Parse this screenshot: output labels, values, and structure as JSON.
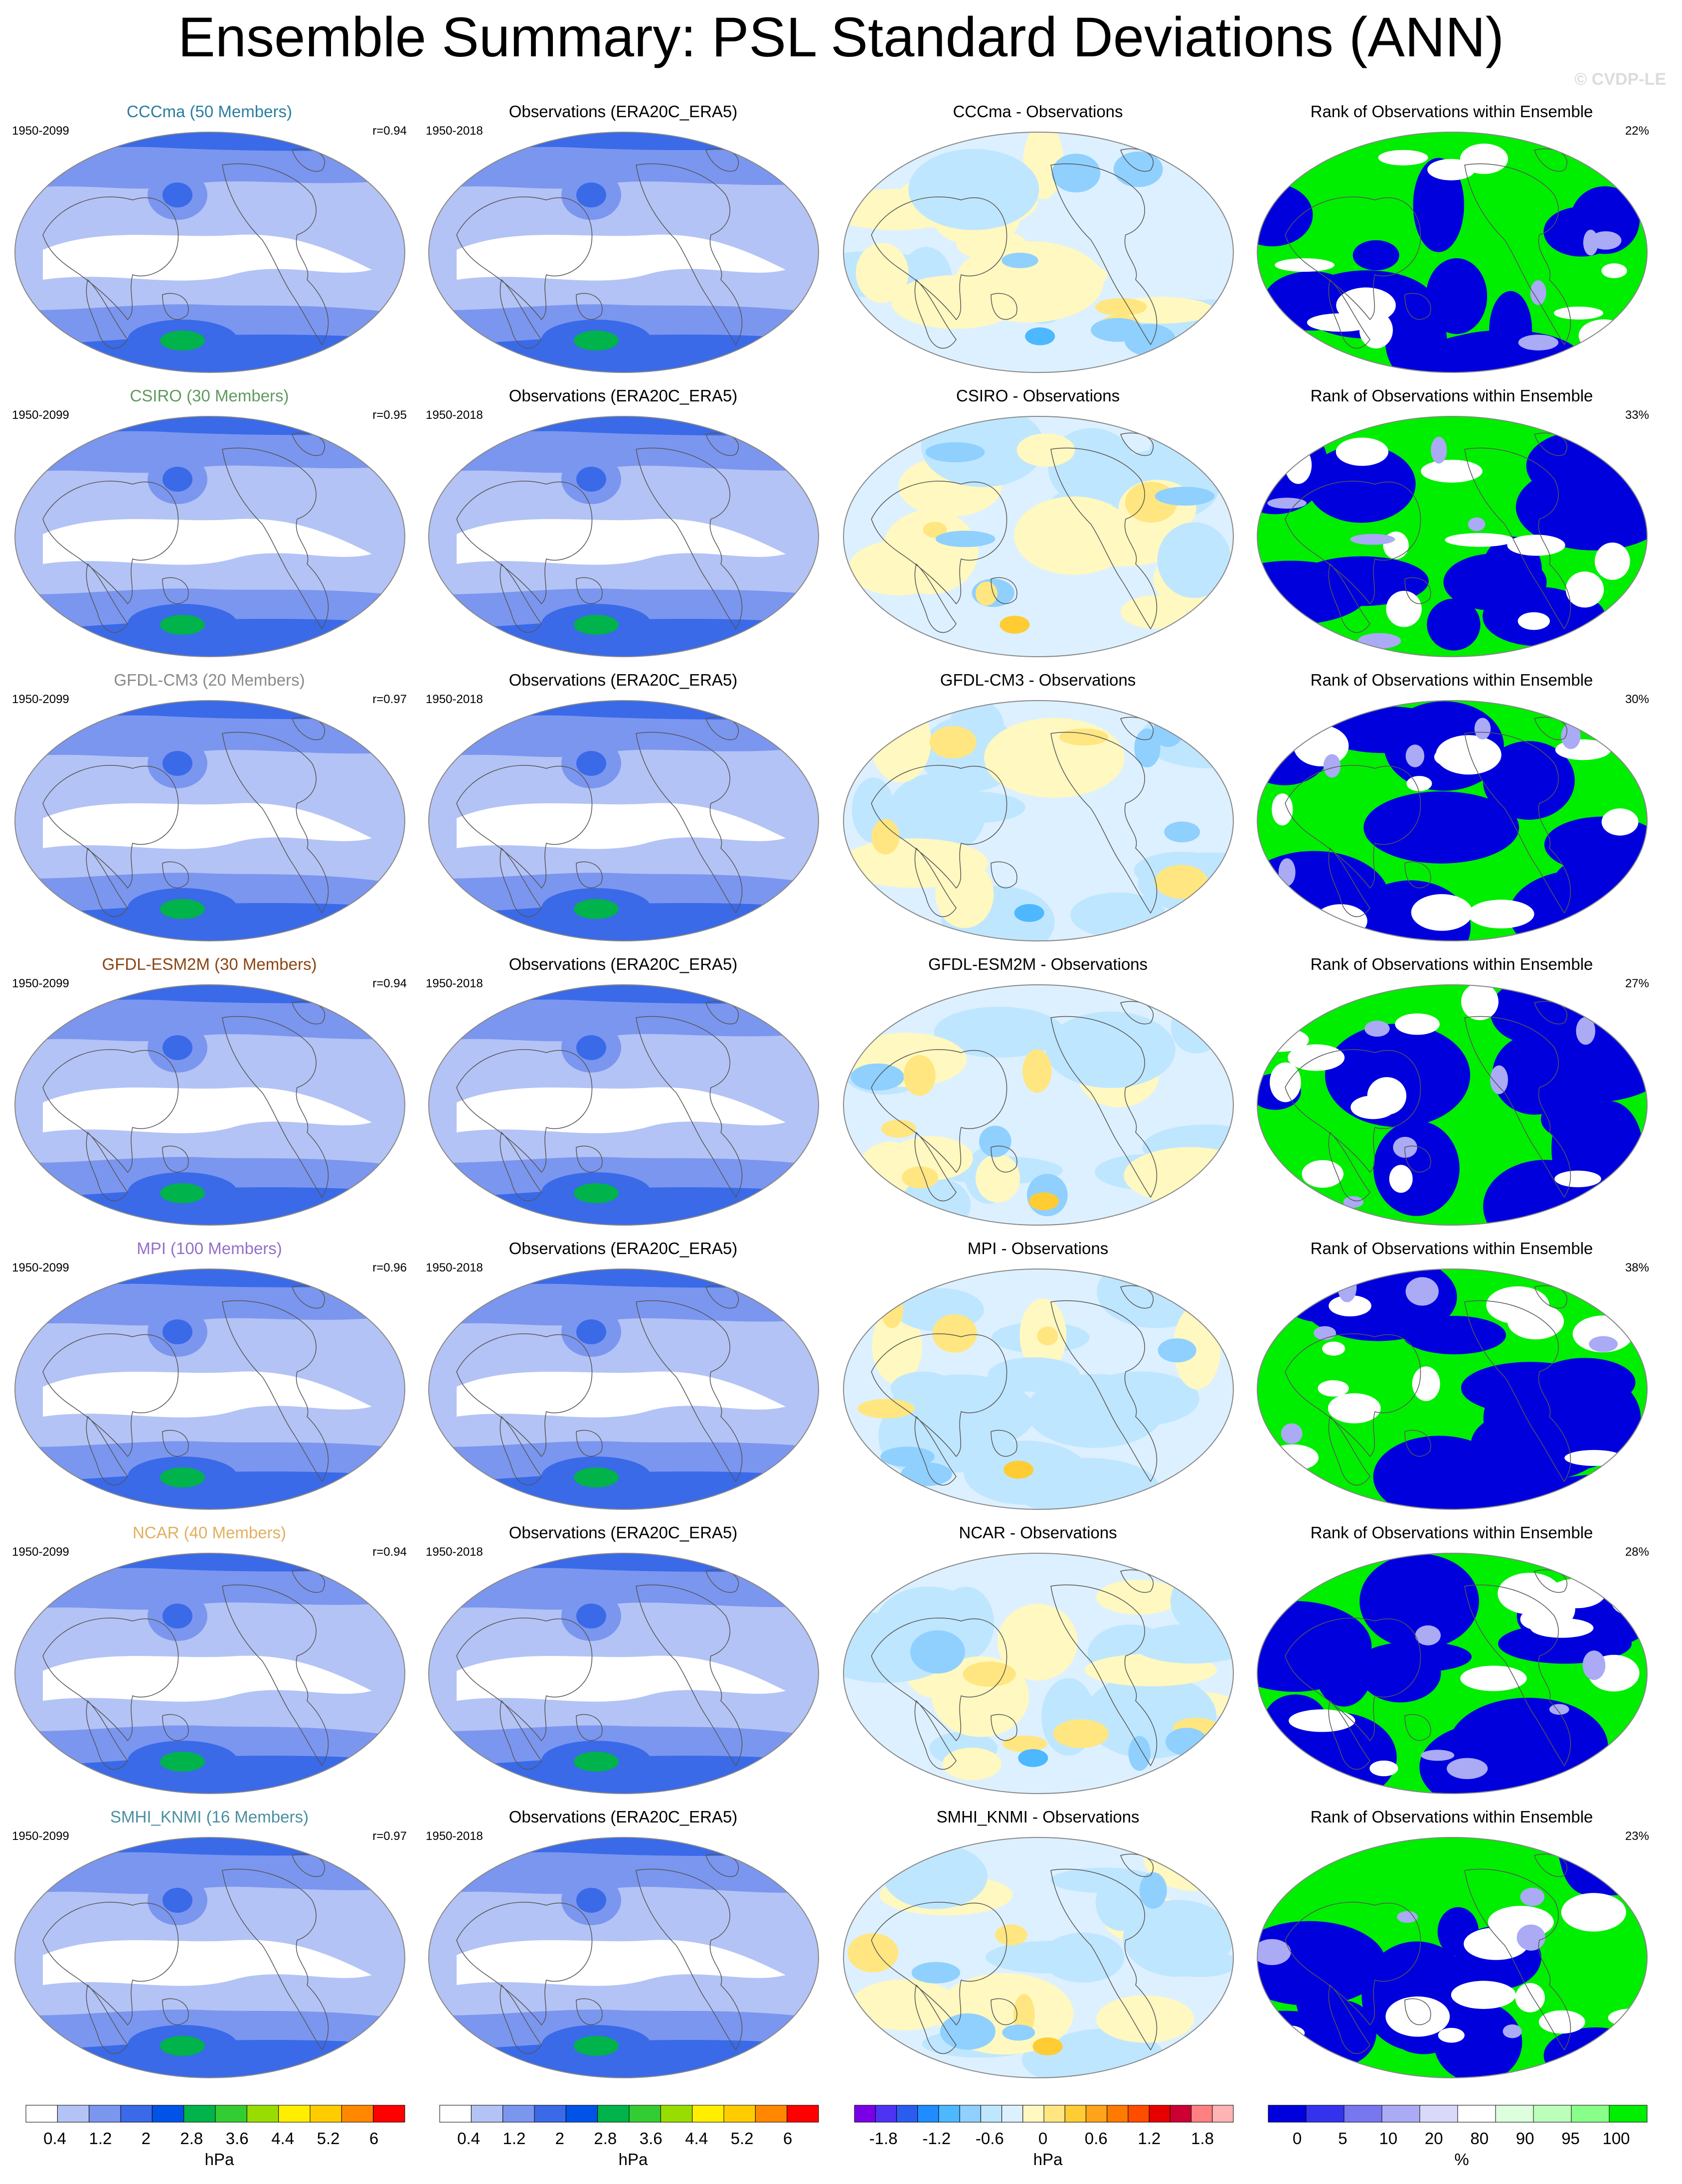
{
  "title": "Ensemble Summary: PSL Standard Deviations (ANN)",
  "watermark": "© CVDP-LE",
  "colors": {
    "land_outline": "#555555",
    "sd": [
      "#ffffff",
      "#b4c3f5",
      "#7b96ef",
      "#3a6ae8",
      "#0053e6",
      "#00b34a",
      "#33cc33",
      "#99dd00",
      "#ffee00",
      "#ffcc00",
      "#ff8800",
      "#ff0000"
    ],
    "diff": [
      "#7a00e6",
      "#4d33f2",
      "#2b5cf0",
      "#1f8cff",
      "#4db8ff",
      "#8fd0ff",
      "#bfe6ff",
      "#ddf0ff",
      "#fff8c0",
      "#ffe680",
      "#ffcc33",
      "#ffa31a",
      "#ff7a00",
      "#ff4d00",
      "#e60000",
      "#cc0033",
      "#ff8080",
      "#ffb3b3"
    ],
    "rank": [
      "#0000dd",
      "#3333ee",
      "#7777f0",
      "#aaaaf5",
      "#d9d9fa",
      "#ffffff",
      "#ddffdd",
      "#bbffbb",
      "#88ff88",
      "#00ee00"
    ]
  },
  "rows": [
    {
      "model": "CCCma (50 Members)",
      "model_color": "#2a7ea0",
      "diff_title": "CCCma - Observations",
      "model_period": "1950-2099",
      "r": "r=0.94",
      "rank_pct": "22%"
    },
    {
      "model": "CSIRO (30 Members)",
      "model_color": "#5f9a5f",
      "diff_title": "CSIRO - Observations",
      "model_period": "1950-2099",
      "r": "r=0.95",
      "rank_pct": "33%"
    },
    {
      "model": "GFDL-CM3 (20 Members)",
      "model_color": "#8a8a8a",
      "diff_title": "GFDL-CM3 - Observations",
      "model_period": "1950-2099",
      "r": "r=0.97",
      "rank_pct": "30%"
    },
    {
      "model": "GFDL-ESM2M (30 Members)",
      "model_color": "#8b4513",
      "diff_title": "GFDL-ESM2M - Observations",
      "model_period": "1950-2099",
      "r": "r=0.94",
      "rank_pct": "27%"
    },
    {
      "model": "MPI (100 Members)",
      "model_color": "#9370c8",
      "diff_title": "MPI - Observations",
      "model_period": "1950-2099",
      "r": "r=0.96",
      "rank_pct": "38%"
    },
    {
      "model": "NCAR (40 Members)",
      "model_color": "#e0b060",
      "diff_title": "NCAR - Observations",
      "model_period": "1950-2099",
      "r": "r=0.94",
      "rank_pct": "28%"
    },
    {
      "model": "SMHI_KNMI (16 Members)",
      "model_color": "#4a8fa0",
      "diff_title": "SMHI_KNMI - Observations",
      "model_period": "1950-2099",
      "r": "r=0.97",
      "rank_pct": "23%"
    }
  ],
  "obs_title": "Observations (ERA20C_ERA5)",
  "obs_period": "1950-2018",
  "rank_title": "Rank of Observations within Ensemble",
  "colorbars": [
    {
      "unit": "hPa",
      "ticks": [
        "0.4",
        "1.2",
        "2",
        "2.8",
        "3.6",
        "4.4",
        "5.2",
        "6"
      ],
      "n_boxes": 12,
      "palette": "sd"
    },
    {
      "unit": "hPa",
      "ticks": [
        "0.4",
        "1.2",
        "2",
        "2.8",
        "3.6",
        "4.4",
        "5.2",
        "6"
      ],
      "n_boxes": 12,
      "palette": "sd"
    },
    {
      "unit": "hPa",
      "ticks": [
        "-1.8",
        "-1.2",
        "-0.6",
        "0",
        "0.6",
        "1.2",
        "1.8"
      ],
      "n_boxes": 18,
      "palette": "diff"
    },
    {
      "unit": "%",
      "ticks": [
        "0",
        "5",
        "10",
        "20",
        "80",
        "90",
        "95",
        "100"
      ],
      "n_boxes": 10,
      "palette": "rank"
    }
  ],
  "chart_data": [
    {
      "type": "heatmap",
      "title": "Ensemble Summary: PSL Standard Deviations (ANN)",
      "panel_columns": [
        "model ensemble mean SD",
        "Observations (ERA20C_ERA5)",
        "model - observations difference",
        "Rank of Observations within Ensemble"
      ],
      "sd_colorbar_levels_hPa": [
        0.4,
        0.8,
        1.2,
        1.6,
        2,
        2.4,
        2.8,
        3.2,
        3.6,
        4,
        4.4,
        4.8,
        5.2,
        5.6,
        6
      ],
      "diff_colorbar_levels_hPa": [
        -1.8,
        -1.5,
        -1.2,
        -0.9,
        -0.6,
        -0.3,
        0,
        0.3,
        0.6,
        0.9,
        1.2,
        1.5,
        1.8
      ],
      "rank_colorbar_levels_pct": [
        0,
        5,
        10,
        20,
        80,
        90,
        95,
        100
      ],
      "models": [
        "CCCma",
        "CSIRO",
        "GFDL-CM3",
        "GFDL-ESM2M",
        "MPI",
        "NCAR",
        "SMHI_KNMI"
      ],
      "pattern_correlation": [
        0.94,
        0.95,
        0.97,
        0.94,
        0.96,
        0.94,
        0.97
      ],
      "rank_within_bounds_pct": [
        22,
        33,
        30,
        27,
        38,
        28,
        23
      ]
    }
  ]
}
